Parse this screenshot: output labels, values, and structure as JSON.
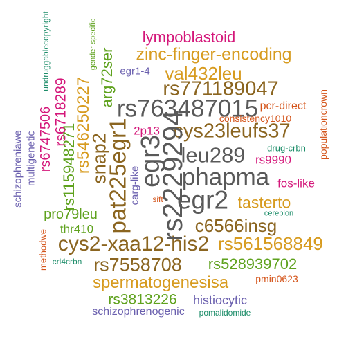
{
  "palette": {
    "dark_gray": "#595959",
    "brown": "#8b6520",
    "gold": "#d79b1f",
    "green": "#5fa21e",
    "magenta": "#d4177a",
    "orange_red": "#d4541a",
    "purple": "#6a5fae",
    "teal": "#1b8c68"
  },
  "words": [
    {
      "text": "lympoblastoid",
      "color": "magenta"
    },
    {
      "text": "zinc-finger-encoding",
      "color": "gold"
    },
    {
      "text": "egr1-4",
      "color": "purple"
    },
    {
      "text": "val432leu",
      "color": "gold"
    },
    {
      "text": "rs771189047",
      "color": "brown"
    },
    {
      "text": "rs763487015",
      "color": "dark_gray"
    },
    {
      "text": "pcr-direct",
      "color": "orange_red"
    },
    {
      "text": "2p13",
      "color": "magenta"
    },
    {
      "text": "cys23leufs37",
      "color": "brown"
    },
    {
      "text": "consistency1010",
      "color": "orange_red"
    },
    {
      "text": "leu289",
      "color": "dark_gray"
    },
    {
      "text": "drug-crbn",
      "color": "teal"
    },
    {
      "text": "rs9990",
      "color": "magenta"
    },
    {
      "text": "phapma",
      "color": "dark_gray"
    },
    {
      "text": "fos-like",
      "color": "magenta"
    },
    {
      "text": "egr2",
      "color": "dark_gray"
    },
    {
      "text": "tasterto",
      "color": "gold"
    },
    {
      "text": "sift",
      "color": "orange_red"
    },
    {
      "text": "cereblon",
      "color": "teal"
    },
    {
      "text": "pro79leu",
      "color": "green"
    },
    {
      "text": "c6566insg",
      "color": "brown"
    },
    {
      "text": "thr410",
      "color": "green"
    },
    {
      "text": "cys2-xaa12-his2",
      "color": "brown"
    },
    {
      "text": "rs561568849",
      "color": "gold"
    },
    {
      "text": "rs7558708",
      "color": "brown"
    },
    {
      "text": "rs528939702",
      "color": "green"
    },
    {
      "text": "crl4crbn",
      "color": "teal"
    },
    {
      "text": "spermatogenesisa",
      "color": "gold"
    },
    {
      "text": "pmin0623",
      "color": "orange_red"
    },
    {
      "text": "rs3813226",
      "color": "green"
    },
    {
      "text": "histiocytic",
      "color": "purple"
    },
    {
      "text": "schizophrenogenic",
      "color": "purple"
    },
    {
      "text": "pomalidomide",
      "color": "teal"
    },
    {
      "text": "undruggablecopyright",
      "color": "teal"
    },
    {
      "text": "gender-specific",
      "color": "green"
    },
    {
      "text": "arg72ser",
      "color": "green"
    },
    {
      "text": "rs546250227",
      "color": "gold"
    },
    {
      "text": "rs6718289",
      "color": "magenta"
    },
    {
      "text": "rs6747506",
      "color": "magenta"
    },
    {
      "text": "multigenetic",
      "color": "purple"
    },
    {
      "text": "schizophreniawe",
      "color": "purple"
    },
    {
      "text": "rs115948271",
      "color": "green"
    },
    {
      "text": "snap2",
      "color": "brown"
    },
    {
      "text": "pat225egr1",
      "color": "brown"
    },
    {
      "text": "carg-like",
      "color": "purple"
    },
    {
      "text": "egr3",
      "color": "dark_gray"
    },
    {
      "text": "rs2229294",
      "color": "dark_gray"
    },
    {
      "text": "methodwe",
      "color": "orange_red"
    },
    {
      "text": "populationcrown",
      "color": "orange_red"
    }
  ]
}
